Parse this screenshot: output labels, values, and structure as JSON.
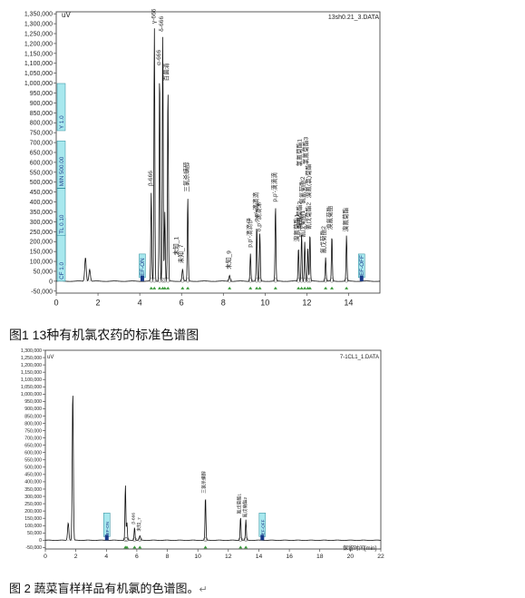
{
  "fig1": {
    "caption": "图1   13种有机氯农药的标准色谱图",
    "unit_label": "uV",
    "file_label": "13sh0.21_3.DATA",
    "chart_data": {
      "type": "line",
      "xlim": [
        0,
        15.5
      ],
      "ylim": [
        -60000,
        1360000
      ],
      "x_ticks": [
        "0",
        "2",
        "4",
        "6",
        "8",
        "10",
        "12",
        "14"
      ],
      "y_ticks": [
        "-50,000",
        "0",
        "50,000",
        "100,000",
        "150,000",
        "200,000",
        "250,000",
        "300,000",
        "350,000",
        "400,000",
        "450,000",
        "500,000",
        "550,000",
        "600,000",
        "650,000",
        "700,000",
        "750,000",
        "800,000",
        "850,000",
        "900,000",
        "950,000",
        "1,000,000",
        "1,050,000",
        "1,100,000",
        "1,150,000",
        "1,200,000",
        "1,250,000",
        "1,300,000",
        "1,350,000"
      ],
      "peaks": [
        {
          "x": 1.4,
          "y": 120000,
          "w": 0.05
        },
        {
          "x": 1.6,
          "y": 60000,
          "w": 0.05
        },
        {
          "x": 4.55,
          "y": 450000,
          "w": 0.03,
          "label": "β-666"
        },
        {
          "x": 4.7,
          "y": 1280000,
          "w": 0.03,
          "label": "γ-666"
        },
        {
          "x": 4.95,
          "y": 1060000,
          "w": 0.03,
          "label": "α-666"
        },
        {
          "x": 5.1,
          "y": 1240000,
          "w": 0.03,
          "label": "δ-666"
        },
        {
          "x": 5.2,
          "y": 350000,
          "w": 0.03
        },
        {
          "x": 5.35,
          "y": 980000,
          "w": 0.03,
          "label": "百菌清"
        },
        {
          "x": 6.05,
          "y": 60000,
          "w": 0.04,
          "label": "未知_7"
        },
        {
          "x": 6.3,
          "y": 420000,
          "w": 0.03,
          "label": "三氯杀螨醇"
        },
        {
          "x": 8.3,
          "y": 30000,
          "w": 0.04,
          "label": "未知_9"
        },
        {
          "x": 9.3,
          "y": 140000,
          "w": 0.03,
          "label": "p,p'-滴滴伊"
        },
        {
          "x": 9.6,
          "y": 280000,
          "w": 0.03,
          "label": "o,p'-滴滴滴"
        },
        {
          "x": 9.75,
          "y": 240000,
          "w": 0.03
        },
        {
          "x": 10.5,
          "y": 380000,
          "w": 0.03,
          "label": "p,p'-滴滴滴"
        },
        {
          "x": 11.6,
          "y": 170000,
          "w": 0.03
        },
        {
          "x": 11.75,
          "y": 240000,
          "w": 0.03
        },
        {
          "x": 11.9,
          "y": 200000,
          "w": 0.03
        },
        {
          "x": 12.05,
          "y": 170000,
          "w": 0.03
        },
        {
          "x": 12.15,
          "y": 240000,
          "w": 0.03
        },
        {
          "x": 12.9,
          "y": 120000,
          "w": 0.03
        },
        {
          "x": 13.2,
          "y": 230000,
          "w": 0.03
        },
        {
          "x": 13.9,
          "y": 230000,
          "w": 0.03
        }
      ],
      "peak_labels_fig1": [
        {
          "x": 4.75,
          "y": 1300000,
          "text": "γ-666"
        },
        {
          "x": 5.12,
          "y": 1260000,
          "text": "δ-666"
        },
        {
          "x": 5.0,
          "y": 1090000,
          "text": "α-666"
        },
        {
          "x": 5.37,
          "y": 1010000,
          "text": "百菌清"
        },
        {
          "x": 4.6,
          "y": 480000,
          "text": "β-666"
        },
        {
          "x": 6.33,
          "y": 450000,
          "text": "三氯杀螨醇"
        },
        {
          "x": 5.85,
          "y": 130000,
          "text": "未知_1"
        },
        {
          "x": 6.07,
          "y": 90000,
          "text": "未知_7"
        },
        {
          "x": 8.35,
          "y": 60000,
          "text": "未知_9"
        },
        {
          "x": 9.35,
          "y": 170000,
          "text": "p,p'-滴滴伊"
        },
        {
          "x": 9.65,
          "y": 300000,
          "text": "o,p'-滴滴滴"
        },
        {
          "x": 9.8,
          "y": 250000,
          "text": "o,p'-滴滴涕"
        },
        {
          "x": 10.55,
          "y": 400000,
          "text": "p,p'-滴滴滴"
        },
        {
          "x": 11.62,
          "y": 200000,
          "text": "溴氰菊酯1"
        },
        {
          "x": 11.75,
          "y": 265000,
          "text": "溴氰菊酯2"
        },
        {
          "x": 11.9,
          "y": 220000,
          "text": "氰戊菊酯1"
        },
        {
          "x": 11.75,
          "y": 580000,
          "text": "氯氰菊酯1"
        },
        {
          "x": 11.9,
          "y": 390000,
          "text": "氯氰菊酯2"
        },
        {
          "x": 12.05,
          "y": 590000,
          "text": "氯氰菊酯3"
        },
        {
          "x": 12.18,
          "y": 260000,
          "text": "氰戊菊酯2"
        },
        {
          "x": 12.18,
          "y": 420000,
          "text": "溴氰(氯)菊酯"
        },
        {
          "x": 12.9,
          "y": 140000,
          "text": "氰戊菊酯2"
        },
        {
          "x": 13.2,
          "y": 260000,
          "text": "溴氰菊酯"
        },
        {
          "x": 13.95,
          "y": 250000,
          "text": "溴氰菊酯"
        }
      ],
      "markers_fig1": [
        {
          "x": 4.1,
          "text": "EF-ON",
          "type": "box"
        },
        {
          "x": 14.6,
          "text": "EF-OFF",
          "type": "box"
        }
      ],
      "side_labels_fig1": [
        {
          "text": "SPW 0.16",
          "y": 80000
        },
        {
          "text": "CF 1.0",
          "y": 0
        },
        {
          "text": "TL 0.10",
          "y": 230000
        },
        {
          "text": "MIN 500.00",
          "y": 470000
        },
        {
          "text": "Y 1.0",
          "y": 760000
        }
      ]
    }
  },
  "fig2": {
    "caption": "图 2   蔬菜盲样样品有机氯的色谱图。",
    "caption_mark": "↵",
    "unit_label": "uV",
    "file_label": "7-1CL1_1.DATA",
    "x_axis_label": "保留时间[min]",
    "chart_data": {
      "type": "line",
      "xlim": [
        0,
        22
      ],
      "ylim": [
        -60000,
        1300000
      ],
      "x_ticks": [
        "0",
        "2",
        "4",
        "6",
        "8",
        "10",
        "12",
        "14",
        "16",
        "18",
        "20",
        "22"
      ],
      "y_ticks": [
        "-50,000",
        "0",
        "50,000",
        "100,000",
        "150,000",
        "200,000",
        "250,000",
        "300,000",
        "350,000",
        "400,000",
        "450,000",
        "500,000",
        "550,000",
        "600,000",
        "650,000",
        "700,000",
        "750,000",
        "800,000",
        "850,000",
        "900,000",
        "950,000",
        "1,000,000",
        "1,050,000",
        "1,100,000",
        "1,150,000",
        "1,200,000",
        "1,250,000",
        "1,300,000"
      ],
      "peaks": [
        {
          "x": 1.5,
          "y": 120000,
          "w": 0.06
        },
        {
          "x": 1.8,
          "y": 1020000,
          "w": 0.05
        },
        {
          "x": 5.25,
          "y": 380000,
          "w": 0.04
        },
        {
          "x": 5.35,
          "y": 120000,
          "w": 0.04
        },
        {
          "x": 5.85,
          "y": 90000,
          "w": 0.04
        },
        {
          "x": 6.2,
          "y": 30000,
          "w": 0.05
        },
        {
          "x": 10.5,
          "y": 300000,
          "w": 0.04
        },
        {
          "x": 12.8,
          "y": 160000,
          "w": 0.04
        },
        {
          "x": 13.15,
          "y": 140000,
          "w": 0.04
        }
      ],
      "peak_labels_fig2": [
        {
          "x": 5.85,
          "y": 110000,
          "text": "β-666"
        },
        {
          "x": 6.25,
          "y": 60000,
          "text": "未知_7"
        },
        {
          "x": 10.5,
          "y": 320000,
          "text": "三氯杀螨醇"
        },
        {
          "x": 12.8,
          "y": 180000,
          "text": "氰戊菊酯1"
        },
        {
          "x": 13.2,
          "y": 155000,
          "text": "氰戊菊酯2"
        }
      ],
      "markers_fig2": [
        {
          "x": 4.0,
          "text": "EF-ON",
          "type": "box"
        },
        {
          "x": 14.2,
          "text": "EF-OFF",
          "type": "box"
        }
      ]
    }
  }
}
